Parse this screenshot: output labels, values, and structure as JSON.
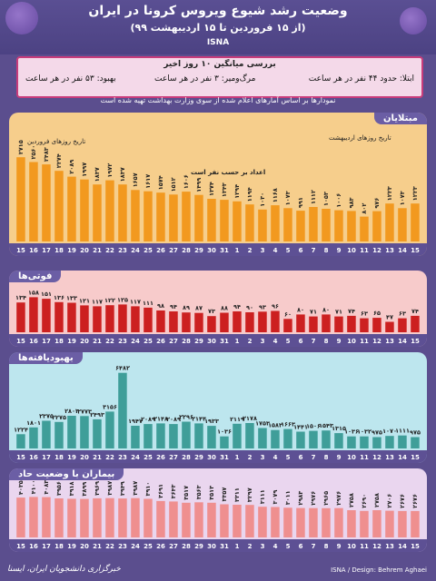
{
  "header": {
    "title": "وضعیت رشد شیوع ویروس کرونا در ایران",
    "subtitle": "(از ۱۵ فروردین تا ۱۵ اردیبهشت ۹۹)",
    "brand": "ISNA"
  },
  "averages": {
    "title": "بررسی میانگین ۱۰ روز اخیر",
    "infected": "ابتلا: حدود ۴۴ نفر در هر ساعت",
    "deaths": "مرگ‌ومیر: ۳ نفر در هر ساعت",
    "recovered": "بهبود: ۵۳ نفر در هر ساعت"
  },
  "note": "نمودارها بر اساس آمارهای اعلام شده از سوی وزارت بهداشت تهیه شده است",
  "days": [
    "15",
    "16",
    "17",
    "18",
    "19",
    "20",
    "21",
    "22",
    "23",
    "24",
    "25",
    "26",
    "27",
    "28",
    "29",
    "30",
    "31",
    "1",
    "2",
    "3",
    "4",
    "5",
    "6",
    "7",
    "8",
    "9",
    "10",
    "11",
    "12",
    "13",
    "14",
    "15"
  ],
  "annotations": {
    "farvardin": "تاریخ روزهای فروردین",
    "ordibehesht": "تاریخ روزهای اردیبهشت",
    "per_person": "اعداد بر حسب نفر است"
  },
  "colors": {
    "infected_panel": "#f6ce8c",
    "infected_bar": "#f2991f",
    "death_panel": "#f7cbcb",
    "death_bar": "#cc2020",
    "recovered_panel": "#bde6ee",
    "recovered_bar": "#3f9e99",
    "critical_panel": "#ead6ef",
    "critical_bar": "#ef8f8f"
  },
  "chart_data": [
    {
      "type": "bar",
      "title": "مبتلایان",
      "categories": [
        "15",
        "16",
        "17",
        "18",
        "19",
        "20",
        "21",
        "22",
        "23",
        "24",
        "25",
        "26",
        "27",
        "28",
        "29",
        "30",
        "31",
        "1",
        "2",
        "3",
        "4",
        "5",
        "6",
        "7",
        "8",
        "9",
        "10",
        "11",
        "12",
        "13",
        "14",
        "15"
      ],
      "values": [
        2715,
        2560,
        2483,
        2274,
        2089,
        1997,
        1837,
        1972,
        1837,
        1657,
        1617,
        1574,
        1512,
        1606,
        1499,
        1374,
        1343,
        1294,
        1194,
        1030,
        1168,
        1073,
        991,
        1112,
        1053,
        1006,
        983,
        802,
        976,
        1223,
        1073,
        1223
      ],
      "value_labels": [
        "۲۷۱۵",
        "۲۵۶۰",
        "۲۴۸۳",
        "۲۲۷۴",
        "۲۰۸۹",
        "۱۹۹۷",
        "۱۸۳۷",
        "۱۹۷۲",
        "۱۸۳۷",
        "۱۶۵۷",
        "۱۶۱۷",
        "۱۵۷۴",
        "۱۵۱۲",
        "۱۶۰۶",
        "۱۴۹۹",
        "۱۳۷۴",
        "۱۳۴۳",
        "۱۲۹۴",
        "۱۱۹۴",
        "۱۰۳۰",
        "۱۱۶۸",
        "۱۰۷۳",
        "۹۹۱",
        "۱۱۱۲",
        "۱۰۵۳",
        "۱۰۰۶",
        "۹۸۳",
        "۸۰۲",
        "۹۷۶",
        "۱۲۲۳",
        "۱۰۷۳",
        "۱۲۲۳"
      ],
      "ylim": [
        0,
        3100
      ]
    },
    {
      "type": "bar",
      "title": "فوتی‌ها",
      "categories": [
        "15",
        "16",
        "17",
        "18",
        "19",
        "20",
        "21",
        "22",
        "23",
        "24",
        "25",
        "26",
        "27",
        "28",
        "29",
        "30",
        "31",
        "1",
        "2",
        "3",
        "4",
        "5",
        "6",
        "7",
        "8",
        "9",
        "10",
        "11",
        "12",
        "13",
        "14",
        "15"
      ],
      "values": [
        134,
        158,
        151,
        136,
        133,
        121,
        117,
        122,
        125,
        117,
        111,
        98,
        94,
        89,
        87,
        73,
        88,
        94,
        90,
        93,
        96,
        60,
        80,
        71,
        80,
        71,
        74,
        63,
        65,
        47,
        63,
        74
      ],
      "value_labels": [
        "۱۳۴",
        "۱۵۸",
        "۱۵۱",
        "۱۳۶",
        "۱۳۳",
        "۱۲۱",
        "۱۱۷",
        "۱۲۲",
        "۱۲۵",
        "۱۱۷",
        "۱۱۱",
        "۹۸",
        "۹۴",
        "۸۹",
        "۸۷",
        "۷۳",
        "۸۸",
        "۹۴",
        "۹۰",
        "۹۳",
        "۹۶",
        "۶۰",
        "۸۰",
        "۷۱",
        "۸۰",
        "۷۱",
        "۷۴",
        "۶۳",
        "۶۵",
        "۴۷",
        "۶۳",
        "۷۴"
      ],
      "ylim": [
        0,
        180
      ]
    },
    {
      "type": "bar",
      "title": "بهبودیافته‌ها",
      "categories": [
        "15",
        "16",
        "17",
        "18",
        "19",
        "20",
        "21",
        "22",
        "23",
        "24",
        "25",
        "26",
        "27",
        "28",
        "29",
        "30",
        "31",
        "1",
        "2",
        "3",
        "4",
        "5",
        "6",
        "7",
        "8",
        "9",
        "10",
        "11",
        "12",
        "13",
        "14",
        "15"
      ],
      "values": [
        1224,
        1801,
        2375,
        2275,
        2803,
        2773,
        2493,
        3156,
        6482,
        1947,
        2089,
        2148,
        2089,
        2296,
        2144,
        1933,
        1036,
        2119,
        2178,
        1753,
        1582,
        1663,
        1441,
        1506,
        1543,
        1315,
        1036,
        1032,
        975,
        1070,
        1111,
        975
      ],
      "value_labels": [
        "۱۲۲۴",
        "۱۸۰۱",
        "۲۳۷۵",
        "۲۲۷۵",
        "۲۸۰۳",
        "۲۷۷۳",
        "۲۴۹۳",
        "۳۱۵۶",
        "۶۴۸۲",
        "۱۹۴۷",
        "۲۰۸۹",
        "۲۱۴۸",
        "۲۰۸۹",
        "۲۲۹۶",
        "۲۱۴۴",
        "۱۹۳۳",
        "۱۰۳۶",
        "۲۱۱۹",
        "۲۱۷۸",
        "۱۷۵۳",
        "۱۵۸۲",
        "۱۶۶۳",
        "۱۴۴۱",
        "۱۵۰۶",
        "۱۵۴۳",
        "۱۳۱۵",
        "۱۰۳۶",
        "۱۰۳۲",
        "۹۷۵",
        "۱۰۷۰",
        "۱۱۱۱",
        "۹۷۵"
      ],
      "ylim": [
        0,
        7000
      ]
    },
    {
      "type": "bar",
      "title": "بیماران با وضعیت حاد",
      "categories": [
        "15",
        "16",
        "17",
        "18",
        "19",
        "20",
        "21",
        "22",
        "23",
        "24",
        "25",
        "26",
        "27",
        "28",
        "29",
        "30",
        "31",
        "1",
        "2",
        "3",
        "4",
        "5",
        "6",
        "7",
        "8",
        "9",
        "10",
        "11",
        "12",
        "13",
        "14",
        "15"
      ],
      "values": [
        4035,
        4100,
        4083,
        3956,
        3918,
        3899,
        3969,
        3987,
        3949,
        3987,
        3910,
        3691,
        3643,
        3517,
        3563,
        3513,
        3357,
        3311,
        3297,
        3111,
        3079,
        3011,
        2983,
        2976,
        2965,
        2976,
        2758,
        2690,
        2758,
        2706,
        2676,
        2676
      ],
      "value_labels": [
        "۴۰۳۵",
        "۴۱۰۰",
        "۴۰۸۳",
        "۳۹۵۶",
        "۳۹۱۸",
        "۳۸۹۹",
        "۳۹۶۹",
        "۳۹۸۷",
        "۳۹۴۹",
        "۳۹۸۷",
        "۳۹۱۰",
        "۳۶۹۱",
        "۳۶۴۳",
        "۳۵۱۷",
        "۳۵۶۳",
        "۳۵۱۳",
        "۳۳۵۷",
        "۳۳۱۱",
        "۳۲۹۷",
        "۳۱۱۱",
        "۳۰۷۹",
        "۳۰۱۱",
        "۲۹۸۳",
        "۲۹۷۶",
        "۲۹۶۵",
        "۲۹۷۶",
        "۲۷۵۸",
        "۲۶۹۰",
        "۲۷۵۸",
        "۲۷۰۶",
        "۲۶۷۶",
        "۲۶۷۶"
      ],
      "ylim": [
        0,
        4600
      ]
    }
  ],
  "footer": {
    "agency": "خبرگزاری دانشجویان ایران، ایسنا",
    "credit": "ISNA / Design: Behrem Aghaei"
  }
}
